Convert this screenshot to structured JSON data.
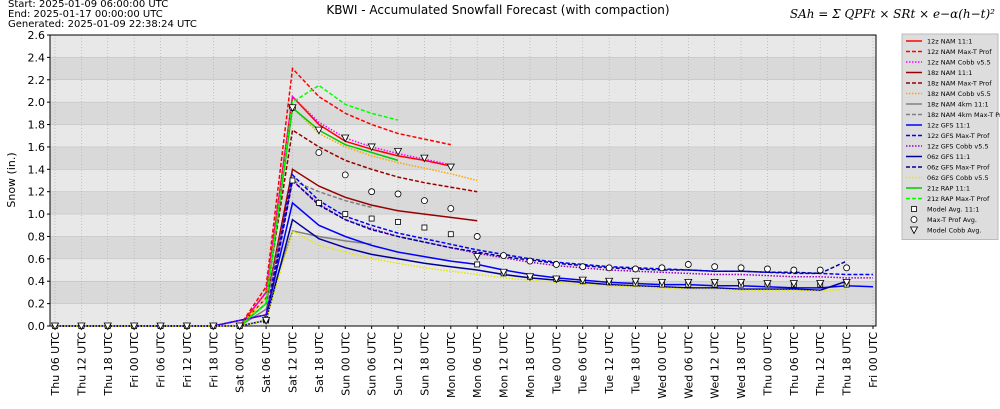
{
  "chart_data": {
    "type": "line",
    "title": "KBWI - Accumulated Snowfall Forecast (with compaction)",
    "header_lines": [
      "Start: 2025-01-09 06:00:00 UTC",
      "End: 2025-01-17 00:00:00 UTC",
      "Generated: 2025-01-09 22:38:24 UTC"
    ],
    "formula": "SAh = Σ QPFt × SRt × e−α(h−t)²",
    "ylabel": "Snow (in.)",
    "ylim": [
      0,
      2.6
    ],
    "yticks": [
      {
        "value": 0,
        "label": "0.0"
      },
      0.2,
      0.4,
      0.6,
      0.8,
      {
        "value": 1,
        "label": "1.0"
      },
      1.2,
      1.4,
      1.6,
      1.8,
      {
        "value": 2,
        "label": "2.0"
      },
      2.2,
      2.4,
      2.6
    ],
    "grid": true,
    "legend": "right",
    "categories": [
      "Thu 06 UTC",
      "Thu 12 UTC",
      "Thu 18 UTC",
      "Fri 00 UTC",
      "Fri 06 UTC",
      "Fri 12 UTC",
      "Fri 18 UTC",
      "Sat 00 UTC",
      "Sat 06 UTC",
      "Sat 12 UTC",
      "Sat 18 UTC",
      "Sun 00 UTC",
      "Sun 06 UTC",
      "Sun 12 UTC",
      "Sun 18 UTC",
      "Mon 00 UTC",
      "Mon 06 UTC",
      "Mon 12 UTC",
      "Mon 18 UTC",
      "Tue 00 UTC",
      "Tue 06 UTC",
      "Tue 12 UTC",
      "Tue 18 UTC",
      "Wed 00 UTC",
      "Wed 06 UTC",
      "Wed 12 UTC",
      "Wed 18 UTC",
      "Thu 00 UTC",
      "Thu 06 UTC",
      "Thu 12 UTC",
      "Thu 18 UTC",
      "Fri 00 UTC"
    ],
    "series": [
      {
        "name": "12z NAM 11:1",
        "color": "#ff0000",
        "dash": "solid",
        "values": [
          null,
          null,
          null,
          null,
          null,
          null,
          null,
          0,
          0.3,
          2.05,
          1.8,
          1.65,
          1.58,
          1.52,
          1.48,
          1.43,
          null,
          null,
          null,
          null,
          null,
          null,
          null,
          null,
          null,
          null,
          null,
          null,
          null,
          null,
          null,
          null
        ]
      },
      {
        "name": "12z NAM Max-T Prof",
        "color": "#ff0000",
        "dash": "dashed",
        "values": [
          null,
          null,
          null,
          null,
          null,
          null,
          null,
          0,
          0.35,
          2.3,
          2.05,
          1.9,
          1.8,
          1.72,
          1.67,
          1.62,
          null,
          null,
          null,
          null,
          null,
          null,
          null,
          null,
          null,
          null,
          null,
          null,
          null,
          null,
          null,
          null
        ]
      },
      {
        "name": "12z NAM Cobb v5.5",
        "color": "#ff00ff",
        "dash": "dotted",
        "values": [
          null,
          null,
          null,
          null,
          null,
          null,
          null,
          0,
          0.3,
          2.05,
          1.82,
          1.68,
          1.6,
          1.54,
          1.49,
          1.44,
          null,
          null,
          null,
          null,
          null,
          null,
          null,
          null,
          null,
          null,
          null,
          null,
          null,
          null,
          null,
          null
        ]
      },
      {
        "name": "18z NAM 11:1",
        "color": "#990000",
        "dash": "solid",
        "values": [
          null,
          null,
          null,
          null,
          null,
          null,
          null,
          0,
          0.2,
          1.4,
          1.25,
          1.15,
          1.08,
          1.03,
          1.0,
          0.97,
          0.94,
          null,
          null,
          null,
          null,
          null,
          null,
          null,
          null,
          null,
          null,
          null,
          null,
          null,
          null,
          null
        ]
      },
      {
        "name": "18z NAM Max-T Prof",
        "color": "#990000",
        "dash": "dashed",
        "values": [
          null,
          null,
          null,
          null,
          null,
          null,
          null,
          0,
          0.25,
          1.75,
          1.6,
          1.48,
          1.4,
          1.33,
          1.28,
          1.24,
          1.2,
          null,
          null,
          null,
          null,
          null,
          null,
          null,
          null,
          null,
          null,
          null,
          null,
          null,
          null,
          null
        ]
      },
      {
        "name": "18z NAM Cobb v5.5",
        "color": "#ffa500",
        "dash": "dotted",
        "values": [
          null,
          null,
          null,
          null,
          null,
          null,
          null,
          0,
          0.25,
          1.95,
          1.72,
          1.6,
          1.52,
          1.46,
          1.41,
          1.36,
          1.3,
          null,
          null,
          null,
          null,
          null,
          null,
          null,
          null,
          null,
          null,
          null,
          null,
          null,
          null,
          null
        ]
      },
      {
        "name": "18z NAM 4km 11:1",
        "color": "#808080",
        "dash": "solid",
        "values": [
          null,
          null,
          null,
          null,
          null,
          null,
          null,
          0,
          0.15,
          0.85,
          0.8,
          0.76,
          0.73,
          null,
          null,
          null,
          null,
          null,
          null,
          null,
          null,
          null,
          null,
          null,
          null,
          null,
          null,
          null,
          null,
          null,
          null,
          null
        ]
      },
      {
        "name": "18z NAM 4km Max-T Prof",
        "color": "#808080",
        "dash": "dashed",
        "values": [
          null,
          null,
          null,
          null,
          null,
          null,
          null,
          0,
          0.2,
          1.3,
          1.2,
          1.12,
          1.06,
          null,
          null,
          null,
          null,
          null,
          null,
          null,
          null,
          null,
          null,
          null,
          null,
          null,
          null,
          null,
          null,
          null,
          null,
          null
        ]
      },
      {
        "name": "12z GFS 11:1",
        "color": "#0000ff",
        "dash": "solid",
        "values": [
          0,
          0,
          0,
          0,
          0,
          0,
          0,
          0.05,
          0.1,
          1.1,
          0.9,
          0.8,
          0.72,
          0.66,
          0.62,
          0.58,
          0.55,
          0.5,
          0.46,
          0.43,
          0.41,
          0.39,
          0.38,
          0.37,
          0.37,
          0.36,
          0.36,
          0.35,
          0.34,
          0.34,
          0.36,
          0.35
        ]
      },
      {
        "name": "12z GFS Max-T Prof",
        "color": "#0000ff",
        "dash": "dashed",
        "values": [
          0,
          0,
          0,
          0,
          0,
          0,
          0,
          0.05,
          0.1,
          1.35,
          1.12,
          0.98,
          0.9,
          0.83,
          0.78,
          0.73,
          0.68,
          0.64,
          0.6,
          0.57,
          0.55,
          0.53,
          0.52,
          0.51,
          0.5,
          0.49,
          0.49,
          0.48,
          0.47,
          0.47,
          0.46,
          0.46
        ]
      },
      {
        "name": "12z GFS Cobb v5.5",
        "color": "#9900cc",
        "dash": "dotted",
        "values": [
          0,
          0,
          0,
          0,
          0,
          0,
          0,
          0.05,
          0.1,
          1.3,
          1.09,
          0.95,
          0.87,
          0.8,
          0.75,
          0.7,
          0.65,
          0.61,
          0.57,
          0.54,
          0.52,
          0.5,
          0.49,
          0.48,
          0.47,
          0.46,
          0.46,
          0.45,
          0.44,
          0.44,
          0.43,
          0.43
        ]
      },
      {
        "name": "06z GFS 11:1",
        "color": "#000099",
        "dash": "solid",
        "values": [
          0,
          0,
          0,
          0,
          0,
          0,
          0,
          0,
          0.05,
          0.95,
          0.78,
          0.7,
          0.64,
          0.6,
          0.56,
          0.53,
          0.5,
          0.46,
          0.43,
          0.41,
          0.39,
          0.37,
          0.36,
          0.35,
          0.34,
          0.34,
          0.33,
          0.33,
          0.33,
          0.32,
          0.4,
          null
        ]
      },
      {
        "name": "06z GFS Max-T Prof",
        "color": "#000099",
        "dash": "dashed",
        "values": [
          0,
          0,
          0,
          0,
          0,
          0,
          0,
          0,
          0.05,
          1.3,
          1.08,
          0.95,
          0.86,
          0.8,
          0.75,
          0.7,
          0.66,
          0.62,
          0.59,
          0.56,
          0.54,
          0.52,
          0.51,
          0.5,
          0.5,
          0.49,
          0.49,
          0.48,
          0.48,
          0.47,
          0.58,
          null
        ]
      },
      {
        "name": "06z GFS Cobb v5.5",
        "color": "#e6e600",
        "dash": "dotted",
        "values": [
          0,
          0,
          0,
          0,
          0,
          0,
          0,
          0,
          0.05,
          0.85,
          0.72,
          0.66,
          0.6,
          0.56,
          0.52,
          0.49,
          0.46,
          0.43,
          0.41,
          0.39,
          0.37,
          0.36,
          0.35,
          0.34,
          0.33,
          0.33,
          0.32,
          0.32,
          0.32,
          0.31,
          0.33,
          null
        ]
      },
      {
        "name": "21z RAP 11:1",
        "color": "#00cc00",
        "dash": "solid",
        "values": [
          null,
          null,
          null,
          null,
          null,
          null,
          null,
          0,
          0.2,
          1.95,
          1.75,
          1.62,
          1.55,
          1.48,
          null,
          null,
          null,
          null,
          null,
          null,
          null,
          null,
          null,
          null,
          null,
          null,
          null,
          null,
          null,
          null,
          null,
          null
        ]
      },
      {
        "name": "21z RAP Max-T Prof",
        "color": "#00ff00",
        "dash": "dashed",
        "values": [
          null,
          null,
          null,
          null,
          null,
          null,
          null,
          0,
          0.2,
          2.0,
          2.15,
          1.98,
          1.9,
          1.84,
          null,
          null,
          null,
          null,
          null,
          null,
          null,
          null,
          null,
          null,
          null,
          null,
          null,
          null,
          null,
          null,
          null,
          null
        ]
      },
      {
        "name": "Model Avg. 11:1",
        "color": "#000000",
        "marker": "square",
        "values": [
          0,
          0,
          0,
          0,
          0,
          0,
          0,
          0,
          0.05,
          1.3,
          1.1,
          1.0,
          0.96,
          0.93,
          0.88,
          0.82,
          0.55,
          0.47,
          0.44,
          0.42,
          0.4,
          0.39,
          0.38,
          0.37,
          0.37,
          0.37,
          0.37,
          0.37,
          0.37,
          0.37,
          0.37,
          null
        ]
      },
      {
        "name": "Max-T Prof Avg.",
        "color": "#000000",
        "marker": "circle",
        "values": [
          0,
          0,
          0,
          0,
          0,
          0,
          0,
          0,
          0.06,
          1.95,
          1.55,
          1.35,
          1.2,
          1.18,
          1.12,
          1.05,
          0.8,
          0.63,
          0.58,
          0.55,
          0.53,
          0.52,
          0.51,
          0.52,
          0.55,
          0.53,
          0.52,
          0.51,
          0.5,
          0.5,
          0.52,
          null
        ]
      },
      {
        "name": "Model Cobb Avg.",
        "color": "#000000",
        "marker": "triangle",
        "values": [
          0,
          0,
          0,
          0,
          0,
          0,
          0,
          0,
          0.05,
          1.95,
          1.75,
          1.68,
          1.6,
          1.56,
          1.5,
          1.42,
          0.62,
          0.48,
          0.44,
          0.42,
          0.41,
          0.4,
          0.4,
          0.39,
          0.39,
          0.39,
          0.39,
          0.38,
          0.38,
          0.38,
          0.39,
          null
        ]
      }
    ]
  }
}
